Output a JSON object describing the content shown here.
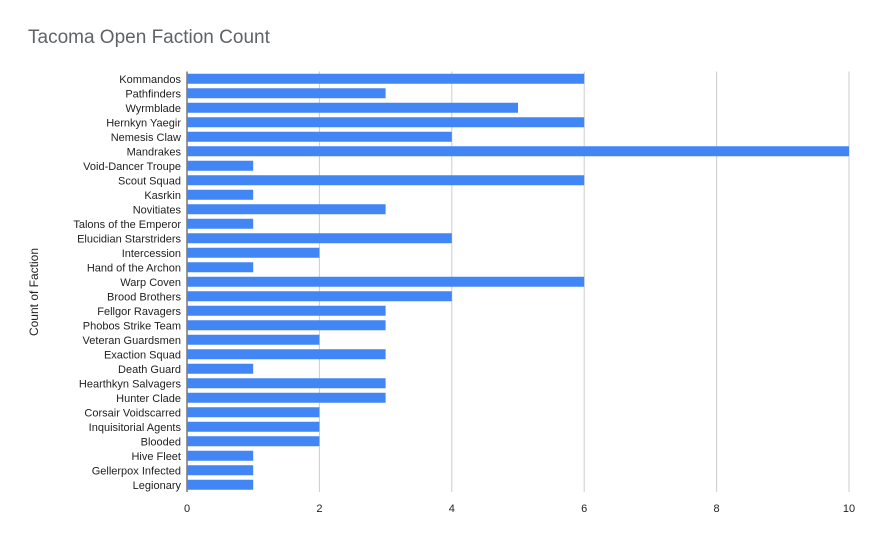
{
  "chart_data": {
    "type": "bar",
    "orientation": "horizontal",
    "title": "Tacoma Open Faction Count",
    "xlabel": "",
    "ylabel": "Count of Faction",
    "xlim": [
      0,
      10
    ],
    "xticks": [
      "0",
      "2",
      "4",
      "6",
      "8",
      "10"
    ],
    "grid": true,
    "bar_color": "#4285f4",
    "categories": [
      "Kommandos",
      "Pathfinders",
      "Wyrmblade",
      "Hernkyn Yaegir",
      "Nemesis Claw",
      "Mandrakes",
      "Void-Dancer Troupe",
      "Scout Squad",
      "Kasrkin",
      "Novitiates",
      "Talons of the Emperor",
      "Elucidian Starstriders",
      "Intercession",
      "Hand of the Archon",
      "Warp Coven",
      "Brood Brothers",
      "Fellgor Ravagers",
      "Phobos Strike Team",
      "Veteran Guardsmen",
      "Exaction Squad",
      "Death Guard",
      "Hearthkyn Salvagers",
      "Hunter Clade",
      "Corsair Voidscarred",
      "Inquisitorial Agents",
      "Blooded",
      "Hive Fleet",
      "Gellerpox Infected",
      "Legionary"
    ],
    "values": [
      6,
      3,
      5,
      6,
      4,
      10,
      1,
      6,
      1,
      3,
      1,
      4,
      2,
      1,
      6,
      4,
      3,
      3,
      2,
      3,
      1,
      3,
      3,
      2,
      2,
      2,
      1,
      1,
      1
    ]
  }
}
